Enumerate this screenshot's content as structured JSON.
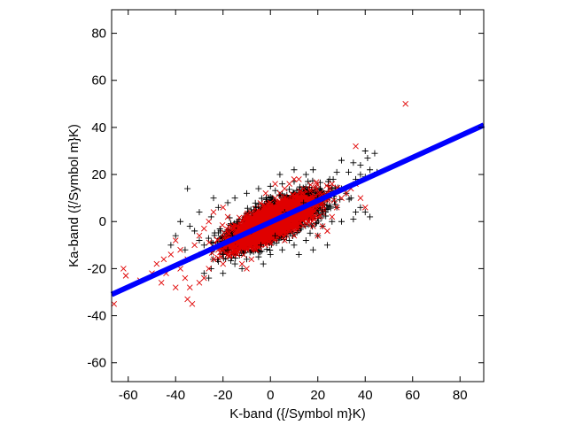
{
  "chart_data": {
    "type": "scatter",
    "title": "",
    "xlabel": "K-band ({/Symbol m}K)",
    "ylabel": "Ka-band ({/Symbol m}K)",
    "xlim": [
      -67,
      90
    ],
    "ylim": [
      -68,
      90
    ],
    "xticks": [
      -60,
      -40,
      -20,
      0,
      20,
      40,
      60,
      80
    ],
    "yticks": [
      -60,
      -40,
      -20,
      0,
      20,
      40,
      60,
      80
    ],
    "grid": false,
    "legend": "none",
    "colors": {
      "plus_series": "#000000",
      "cross_series": "#e00000",
      "fit_line": "#0000ff"
    },
    "series": [
      {
        "marker": "plus",
        "color": "#000000",
        "points": [
          [
            -35,
            14
          ],
          [
            40,
            30
          ],
          [
            41,
            27
          ],
          [
            44,
            29
          ],
          [
            42,
            22
          ],
          [
            38,
            24
          ],
          [
            35,
            25
          ],
          [
            30,
            26
          ],
          [
            33,
            21
          ],
          [
            28,
            21
          ],
          [
            25,
            18
          ],
          [
            36,
            18
          ],
          [
            38,
            20
          ],
          [
            40,
            19
          ],
          [
            45,
            21
          ],
          [
            30,
            14
          ],
          [
            32,
            12
          ],
          [
            34,
            10
          ],
          [
            38,
            6
          ],
          [
            40,
            4
          ],
          [
            42,
            2
          ],
          [
            35,
            1
          ],
          [
            28,
            6
          ],
          [
            26,
            0
          ],
          [
            22,
            -2
          ],
          [
            20,
            -6
          ],
          [
            15,
            -8
          ],
          [
            10,
            -10
          ],
          [
            5,
            -12
          ],
          [
            0,
            -14
          ],
          [
            -3,
            -18
          ],
          [
            -5,
            -15
          ],
          [
            -10,
            -16
          ],
          [
            -12,
            -20
          ],
          [
            -15,
            -18
          ],
          [
            -18,
            -12
          ],
          [
            -20,
            -14
          ],
          [
            -22,
            -17
          ],
          [
            -25,
            -20
          ],
          [
            -28,
            -22
          ],
          [
            -30,
            -8
          ],
          [
            -32,
            -4
          ],
          [
            -34,
            -2
          ],
          [
            -36,
            -12
          ],
          [
            -38,
            0
          ],
          [
            -30,
            4
          ],
          [
            -25,
            2
          ],
          [
            -22,
            6
          ],
          [
            -18,
            8
          ],
          [
            -15,
            10
          ],
          [
            -10,
            12
          ],
          [
            -5,
            14
          ],
          [
            0,
            15
          ],
          [
            5,
            16
          ],
          [
            10,
            17
          ],
          [
            15,
            20
          ],
          [
            18,
            22
          ],
          [
            -40,
            -6
          ],
          [
            -42,
            -10
          ],
          [
            -26,
            -24
          ],
          [
            -20,
            -22
          ],
          [
            12,
            -14
          ],
          [
            18,
            -12
          ],
          [
            24,
            -10
          ],
          [
            8,
            -8
          ],
          [
            2,
            -6
          ],
          [
            -8,
            -4
          ],
          [
            -14,
            0
          ],
          [
            14,
            8
          ],
          [
            20,
            10
          ],
          [
            26,
            14
          ],
          [
            -24,
            10
          ],
          [
            -30,
            -14
          ],
          [
            6,
            4
          ],
          [
            -6,
            6
          ],
          [
            30,
            0
          ],
          [
            36,
            4
          ],
          [
            16,
            12
          ],
          [
            -4,
            -10
          ],
          [
            -16,
            -6
          ],
          [
            22,
            4
          ],
          [
            -28,
            -10
          ],
          [
            10,
            22
          ],
          [
            4,
            20
          ]
        ]
      },
      {
        "marker": "cross",
        "color": "#e00000",
        "points": [
          [
            57,
            50
          ],
          [
            36,
            32
          ],
          [
            -66,
            -35
          ],
          [
            -62,
            -20
          ],
          [
            -61,
            -23
          ],
          [
            -55,
            -25
          ],
          [
            -50,
            -22
          ],
          [
            -48,
            -18
          ],
          [
            -45,
            -16
          ],
          [
            -46,
            -26
          ],
          [
            -40,
            -28
          ],
          [
            -35,
            -33
          ],
          [
            -33,
            -35
          ],
          [
            -42,
            -14
          ],
          [
            -38,
            -20
          ],
          [
            -35,
            -16
          ],
          [
            -32,
            -10
          ],
          [
            -30,
            -6
          ],
          [
            -28,
            -3
          ],
          [
            -26,
            0
          ],
          [
            -24,
            4
          ],
          [
            -20,
            6
          ],
          [
            -18,
            2
          ],
          [
            -16,
            -2
          ],
          [
            -14,
            -6
          ],
          [
            -12,
            -10
          ],
          [
            -10,
            -12
          ],
          [
            -8,
            -8
          ],
          [
            -6,
            -4
          ],
          [
            -4,
            0
          ],
          [
            -2,
            4
          ],
          [
            0,
            8
          ],
          [
            2,
            10
          ],
          [
            4,
            12
          ],
          [
            6,
            14
          ],
          [
            8,
            16
          ],
          [
            10,
            18
          ],
          [
            12,
            18
          ],
          [
            14,
            14
          ],
          [
            16,
            10
          ],
          [
            18,
            6
          ],
          [
            20,
            2
          ],
          [
            22,
            -2
          ],
          [
            24,
            -4
          ],
          [
            26,
            2
          ],
          [
            28,
            6
          ],
          [
            30,
            10
          ],
          [
            32,
            12
          ],
          [
            34,
            14
          ],
          [
            36,
            16
          ],
          [
            38,
            10
          ],
          [
            40,
            6
          ],
          [
            -22,
            -12
          ],
          [
            -24,
            -16
          ],
          [
            -26,
            -20
          ],
          [
            -28,
            -24
          ],
          [
            -30,
            -26
          ],
          [
            -20,
            -18
          ],
          [
            -18,
            -14
          ],
          [
            -16,
            -10
          ],
          [
            -14,
            -14
          ],
          [
            -12,
            -18
          ],
          [
            -10,
            -20
          ],
          [
            -8,
            -16
          ],
          [
            -6,
            -12
          ],
          [
            -4,
            -8
          ],
          [
            -2,
            -4
          ],
          [
            0,
            -2
          ],
          [
            2,
            0
          ],
          [
            4,
            2
          ],
          [
            6,
            4
          ],
          [
            8,
            6
          ],
          [
            10,
            8
          ],
          [
            12,
            10
          ],
          [
            14,
            4
          ],
          [
            16,
            0
          ],
          [
            18,
            -2
          ],
          [
            20,
            -6
          ],
          [
            22,
            8
          ],
          [
            24,
            12
          ],
          [
            26,
            16
          ],
          [
            -36,
            -24
          ],
          [
            -44,
            -22
          ],
          [
            -34,
            -28
          ],
          [
            -38,
            -12
          ],
          [
            -40,
            -8
          ],
          [
            6,
            -8
          ],
          [
            10,
            -6
          ],
          [
            -2,
            12
          ],
          [
            2,
            16
          ]
        ]
      },
      {
        "marker": "line",
        "name": "",
        "color": "#0000ff",
        "x": [
          -67,
          90
        ],
        "y": [
          -31,
          41
        ]
      }
    ]
  }
}
